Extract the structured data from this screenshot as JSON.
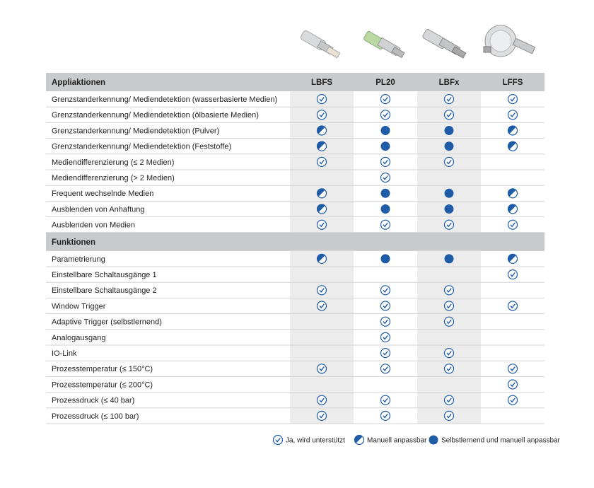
{
  "table": {
    "columns": [
      "LBFS",
      "PL20",
      "LBFx",
      "LFFS"
    ],
    "sections": [
      {
        "title": "Appliaktionen",
        "rows": [
          {
            "label": "Grenzstanderkennung/ Mediendetektion (wasserbasierte Medien)",
            "cells": [
              "check",
              "check",
              "check",
              "check"
            ]
          },
          {
            "label": "Grenzstanderkennung/ Mediendetektion (ölbasierte Medien)",
            "cells": [
              "check",
              "check",
              "check",
              "check"
            ]
          },
          {
            "label": "Grenzstanderkennung/ Mediendetektion (Pulver)",
            "cells": [
              "half",
              "full",
              "full",
              "half"
            ]
          },
          {
            "label": "Grenzstanderkennung/ Mediendetektion (Feststoffe)",
            "cells": [
              "half",
              "full",
              "full",
              "half"
            ]
          },
          {
            "label": "Mediendifferenzierung (≤ 2 Medien)",
            "cells": [
              "check",
              "check",
              "check",
              null
            ]
          },
          {
            "label": "Mediendifferenzierung (> 2 Medien)",
            "cells": [
              null,
              "check",
              null,
              null
            ]
          },
          {
            "label": "Frequent wechselnde Medien",
            "cells": [
              "half",
              "full",
              "full",
              "half"
            ]
          },
          {
            "label": "Ausblenden von Anhaftung",
            "cells": [
              "half",
              "full",
              "full",
              "half"
            ]
          },
          {
            "label": "Ausblenden von Medien",
            "cells": [
              "check",
              "check",
              "check",
              "check"
            ]
          }
        ]
      },
      {
        "title": "Funktionen",
        "rows": [
          {
            "label": "Parametrierung",
            "cells": [
              "half",
              "full",
              "full",
              "half"
            ]
          },
          {
            "label": "Einstellbare Schaltausgänge 1",
            "cells": [
              null,
              null,
              null,
              "check"
            ]
          },
          {
            "label": "Einstellbare Schaltausgänge 2",
            "cells": [
              "check",
              "check",
              "check",
              null
            ]
          },
          {
            "label": "Window Trigger",
            "cells": [
              "check",
              "check",
              "check",
              "check"
            ]
          },
          {
            "label": "Adaptive Trigger (selbstlernend)",
            "cells": [
              null,
              "check",
              "check",
              null
            ]
          },
          {
            "label": "Analogausgang",
            "cells": [
              null,
              "check",
              null,
              null
            ]
          },
          {
            "label": "IO-Link",
            "cells": [
              null,
              "check",
              "check",
              null
            ]
          },
          {
            "label": "Prozesstemperatur (≤ 150°C)",
            "cells": [
              "check",
              "check",
              "check",
              "check"
            ]
          },
          {
            "label": "Prozesstemperatur (≤ 200°C)",
            "cells": [
              null,
              null,
              null,
              "check"
            ]
          },
          {
            "label": "Prozessdruck (≤ 40 bar)",
            "cells": [
              "check",
              "check",
              "check",
              "check"
            ]
          },
          {
            "label": "Prozessdruck (≤ 100 bar)",
            "cells": [
              "check",
              "check",
              "check",
              null
            ]
          }
        ]
      }
    ],
    "legend": [
      {
        "icon": "check",
        "label": "Ja, wird unterstützt"
      },
      {
        "icon": "half",
        "label": "Manuell anpassbar"
      },
      {
        "icon": "full",
        "label": "Selbstlernend und manuell anpassbar"
      }
    ],
    "icon_color": "#1f5ca8"
  }
}
